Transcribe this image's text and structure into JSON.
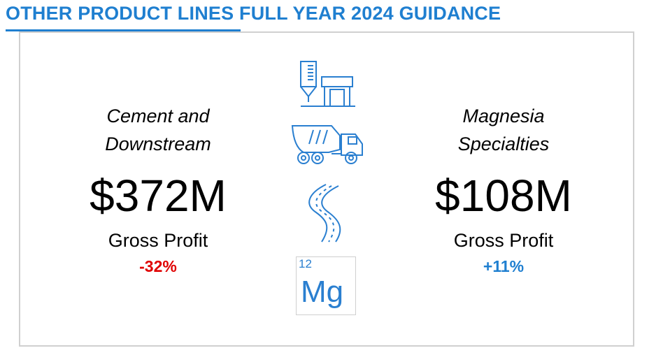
{
  "header": {
    "title": "OTHER PRODUCT LINES FULL YEAR 2024 GUIDANCE"
  },
  "segments": [
    {
      "name_line1": "Cement and",
      "name_line2": "Downstream",
      "amount": "$372M",
      "metric": "Gross Profit",
      "change": "-32%",
      "change_color": "#e00000"
    },
    {
      "name_line1": "Magnesia",
      "name_line2": "Specialties",
      "amount": "$108M",
      "metric": "Gross Profit",
      "change": "+11%",
      "change_color": "#1f7fd0"
    }
  ],
  "icons": {
    "plant": "cement-plant-icon",
    "truck": "mixer-truck-icon",
    "road": "road-icon",
    "element": {
      "atomic_number": "12",
      "symbol": "Mg"
    }
  },
  "colors": {
    "accent": "#1f7fd0",
    "negative": "#e00000",
    "border": "#d0d0d0"
  }
}
